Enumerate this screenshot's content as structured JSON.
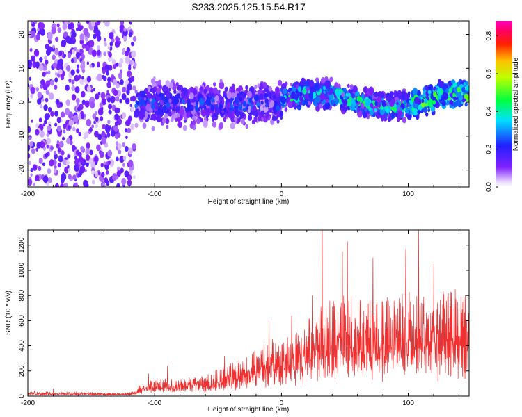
{
  "title": "S233.2025.125.15.54.R17",
  "colors": {
    "snr_line": "#f03030",
    "axis": "#000000",
    "background": "#ffffff"
  },
  "chart_data": [
    {
      "type": "heatmap",
      "xlabel": "Height of straight line (km)",
      "ylabel": "Frequency (Hz)",
      "xlim": [
        -200,
        148
      ],
      "ylim": [
        -25,
        24
      ],
      "xticks": [
        "-200",
        "-100",
        "0",
        "100"
      ],
      "yticks": [
        "-20",
        "-10",
        "0",
        "10",
        "20"
      ],
      "colorbar": {
        "label": "Normalized spectral amplitude",
        "range": [
          0.0,
          0.88
        ],
        "ticks": [
          "0.0",
          "0.2",
          "0.4",
          "0.6",
          "0.8"
        ],
        "colormap": "rainbow (purple-blue-cyan-green-yellow-red-magenta)"
      },
      "regions": [
        {
          "x_range": [
            -200,
            -115
          ],
          "freq_spread_hz": [
            -25,
            24
          ],
          "amplitude": "low, diffuse"
        },
        {
          "x_range": [
            -115,
            0
          ],
          "freq_spread_hz": [
            -8,
            6
          ],
          "amplitude": "low to medium"
        },
        {
          "x_range": [
            0,
            148
          ],
          "freq_spread_hz": [
            -5,
            5
          ],
          "amplitude": "medium to high, band centered near 0-2 Hz"
        }
      ]
    },
    {
      "type": "line",
      "xlabel": "Height of straight line (km)",
      "ylabel": "SNR (10 * v/v)",
      "xlim": [
        -200,
        148
      ],
      "ylim": [
        0,
        1320
      ],
      "xticks": [
        "-200",
        "-100",
        "0",
        "100"
      ],
      "yticks": [
        "0",
        "200",
        "400",
        "600",
        "800",
        "1000",
        "1200"
      ],
      "series": [
        {
          "x": [
            -200,
            -180,
            -160,
            -140,
            -120,
            -115,
            -110,
            -100,
            -90,
            -80,
            -70,
            -60,
            -50,
            -40,
            -30,
            -20,
            -10,
            0,
            10,
            20,
            30,
            40,
            50,
            60,
            70,
            80,
            90,
            100,
            110,
            120,
            130,
            140,
            148
          ],
          "values": [
            25,
            25,
            25,
            20,
            20,
            30,
            80,
            100,
            100,
            90,
            110,
            120,
            150,
            180,
            220,
            280,
            320,
            300,
            360,
            420,
            520,
            540,
            560,
            600,
            560,
            520,
            600,
            580,
            540,
            560,
            580,
            560,
            570
          ],
          "peaks": [
            {
              "x": -195,
              "y": 40
            },
            {
              "x": -180,
              "y": 60
            },
            {
              "x": -105,
              "y": 180
            },
            {
              "x": -90,
              "y": 240
            },
            {
              "x": -45,
              "y": 320
            },
            {
              "x": -10,
              "y": 600
            },
            {
              "x": 8,
              "y": 640
            },
            {
              "x": 24,
              "y": 800
            },
            {
              "x": 32,
              "y": 1320
            },
            {
              "x": 48,
              "y": 1150
            },
            {
              "x": 52,
              "y": 1230
            },
            {
              "x": 72,
              "y": 1100
            },
            {
              "x": 98,
              "y": 1170
            },
            {
              "x": 108,
              "y": 1320
            },
            {
              "x": 120,
              "y": 1050
            },
            {
              "x": 137,
              "y": 850
            },
            {
              "x": 146,
              "y": 600
            }
          ]
        }
      ]
    }
  ]
}
